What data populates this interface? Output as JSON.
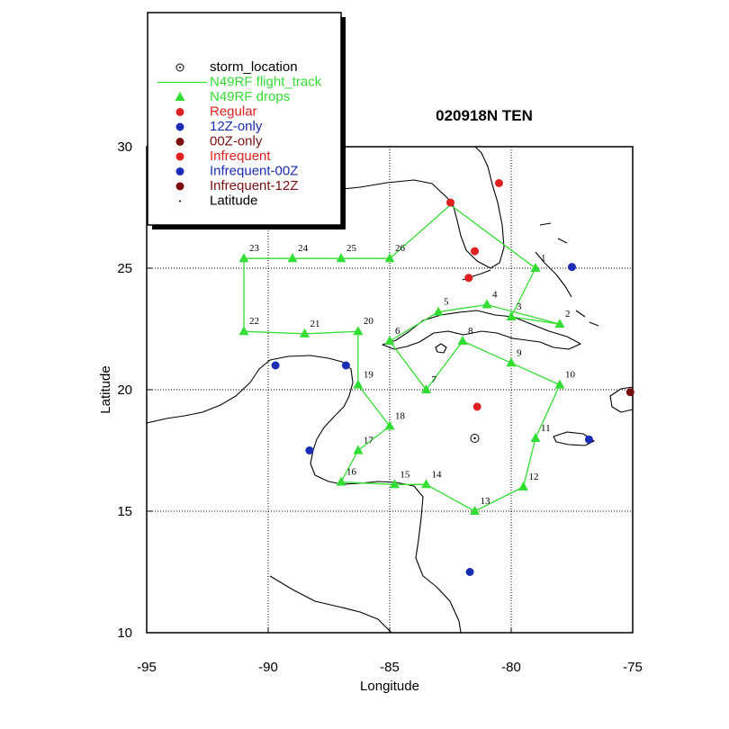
{
  "chart_data": {
    "type": "scatter",
    "title": "020918N TEN",
    "xlabel": "Longitude",
    "ylabel": "Latitude",
    "xlim": [
      -95,
      -75
    ],
    "ylim": [
      10,
      30
    ],
    "xticks": [
      -95,
      -90,
      -85,
      -80,
      -75
    ],
    "yticks": [
      10,
      15,
      20,
      25,
      30
    ],
    "xtick_labels": [
      "-95",
      "-90",
      "-85",
      "-80",
      "-75"
    ],
    "ytick_labels": [
      "10",
      "15",
      "20",
      "25",
      "30"
    ],
    "grid": true,
    "legend_position": "top-left",
    "legend": [
      {
        "label": "storm_location",
        "symbol": "circle-dot",
        "color": "#000000"
      },
      {
        "label": "N49RF flight_track",
        "symbol": "line",
        "color": "#33dd33"
      },
      {
        "label": "N49RF drops",
        "symbol": "triangle",
        "color": "#33dd33"
      },
      {
        "label": "Regular",
        "symbol": "dot",
        "color": "#e02020"
      },
      {
        "label": "12Z-only",
        "symbol": "dot",
        "color": "#1a2db4"
      },
      {
        "label": "00Z-only",
        "symbol": "dot",
        "color": "#7a0f0f"
      },
      {
        "label": "Infrequent",
        "symbol": "dot",
        "color": "#e02020"
      },
      {
        "label": "Infrequent-00Z",
        "symbol": "dot",
        "color": "#1a2db4"
      },
      {
        "label": "Infrequent-12Z",
        "symbol": "dot",
        "color": "#7a0f0f"
      },
      {
        "label": "Latitude",
        "symbol": "small-dot",
        "color": "#000000"
      }
    ],
    "storm_location": {
      "lon": -81.5,
      "lat": 18.0
    },
    "flight_track": [
      [
        -82.5,
        27.6
      ],
      [
        -79.0,
        25.0
      ],
      [
        -80.0,
        23.0
      ],
      [
        -78.0,
        22.7
      ],
      [
        -81.0,
        23.5
      ],
      [
        -83.0,
        23.2
      ],
      [
        -85.0,
        22.0
      ],
      [
        -83.5,
        20.0
      ],
      [
        -82.0,
        22.0
      ],
      [
        -80.0,
        21.1
      ],
      [
        -78.0,
        20.2
      ],
      [
        -79.0,
        18.0
      ],
      [
        -79.5,
        16.0
      ],
      [
        -81.5,
        15.0
      ],
      [
        -83.5,
        16.1
      ],
      [
        -84.8,
        16.1
      ],
      [
        -87.0,
        16.2
      ],
      [
        -86.3,
        17.5
      ],
      [
        -85.0,
        18.5
      ],
      [
        -86.3,
        20.2
      ],
      [
        -86.3,
        22.4
      ],
      [
        -88.5,
        22.3
      ],
      [
        -91.0,
        22.4
      ],
      [
        -91.0,
        25.4
      ],
      [
        -89.0,
        25.4
      ],
      [
        -87.0,
        25.4
      ],
      [
        -85.0,
        25.4
      ],
      [
        -82.5,
        27.6
      ]
    ],
    "drops": [
      {
        "n": "1",
        "lon": -79.0,
        "lat": 25.0
      },
      {
        "n": "2",
        "lon": -78.0,
        "lat": 22.7
      },
      {
        "n": "3",
        "lon": -80.0,
        "lat": 23.0
      },
      {
        "n": "4",
        "lon": -81.0,
        "lat": 23.5
      },
      {
        "n": "5",
        "lon": -83.0,
        "lat": 23.2
      },
      {
        "n": "6",
        "lon": -85.0,
        "lat": 22.0
      },
      {
        "n": "7",
        "lon": -83.5,
        "lat": 20.0
      },
      {
        "n": "8",
        "lon": -82.0,
        "lat": 22.0
      },
      {
        "n": "9",
        "lon": -80.0,
        "lat": 21.1
      },
      {
        "n": "10",
        "lon": -78.0,
        "lat": 20.2
      },
      {
        "n": "11",
        "lon": -79.0,
        "lat": 18.0
      },
      {
        "n": "12",
        "lon": -79.5,
        "lat": 16.0
      },
      {
        "n": "13",
        "lon": -81.5,
        "lat": 15.0
      },
      {
        "n": "14",
        "lon": -83.5,
        "lat": 16.1
      },
      {
        "n": "15",
        "lon": -84.8,
        "lat": 16.1
      },
      {
        "n": "16",
        "lon": -87.0,
        "lat": 16.2
      },
      {
        "n": "17",
        "lon": -86.3,
        "lat": 17.5
      },
      {
        "n": "18",
        "lon": -85.0,
        "lat": 18.5
      },
      {
        "n": "19",
        "lon": -86.3,
        "lat": 20.2
      },
      {
        "n": "20",
        "lon": -86.3,
        "lat": 22.4
      },
      {
        "n": "21",
        "lon": -88.5,
        "lat": 22.3
      },
      {
        "n": "22",
        "lon": -91.0,
        "lat": 22.4
      },
      {
        "n": "23",
        "lon": -91.0,
        "lat": 25.4
      },
      {
        "n": "24",
        "lon": -89.0,
        "lat": 25.4
      },
      {
        "n": "25",
        "lon": -87.0,
        "lat": 25.4
      },
      {
        "n": "26",
        "lon": -85.0,
        "lat": 25.4
      }
    ],
    "stations": [
      {
        "type": "Regular",
        "color": "#e02020",
        "lon": -82.5,
        "lat": 27.7
      },
      {
        "type": "Regular",
        "color": "#e02020",
        "lon": -81.5,
        "lat": 25.7
      },
      {
        "type": "Regular",
        "color": "#e02020",
        "lon": -80.5,
        "lat": 28.5
      },
      {
        "type": "Regular",
        "color": "#e02020",
        "lon": -81.75,
        "lat": 24.6
      },
      {
        "type": "Regular",
        "color": "#e02020",
        "lon": -81.4,
        "lat": 19.3
      },
      {
        "type": "12Z-only",
        "color": "#1a2db4",
        "lon": -77.5,
        "lat": 25.05
      },
      {
        "type": "12Z-only",
        "color": "#1a2db4",
        "lon": -89.7,
        "lat": 21.0
      },
      {
        "type": "12Z-only",
        "color": "#1a2db4",
        "lon": -86.8,
        "lat": 21.0
      },
      {
        "type": "12Z-only",
        "color": "#1a2db4",
        "lon": -88.3,
        "lat": 17.5
      },
      {
        "type": "12Z-only",
        "color": "#1a2db4",
        "lon": -76.8,
        "lat": 17.95
      },
      {
        "type": "12Z-only",
        "color": "#1a2db4",
        "lon": -81.7,
        "lat": 12.5
      },
      {
        "type": "00Z-only",
        "color": "#7a0f0f",
        "lon": -75.1,
        "lat": 19.9
      }
    ]
  }
}
